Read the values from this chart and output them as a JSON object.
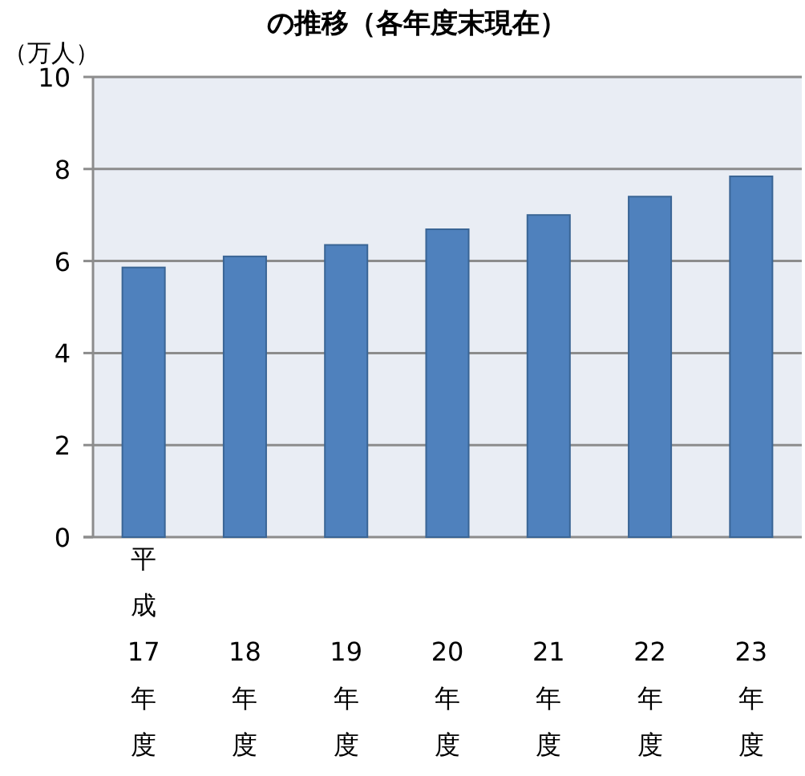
{
  "chart_data": {
    "type": "bar",
    "title": "の推移（各年度末現在）",
    "ylabel": "（万人）",
    "categories": [
      "平成17年度",
      "18年度",
      "19年度",
      "20年度",
      "21年度",
      "22年度",
      "23年度"
    ],
    "values": [
      5.86,
      6.1,
      6.35,
      6.69,
      7.0,
      7.4,
      7.84
    ],
    "color": "#4f81bd",
    "ylim": [
      0,
      10
    ],
    "yticks": [
      0,
      2,
      4,
      6,
      8,
      10
    ],
    "grid": "y"
  }
}
